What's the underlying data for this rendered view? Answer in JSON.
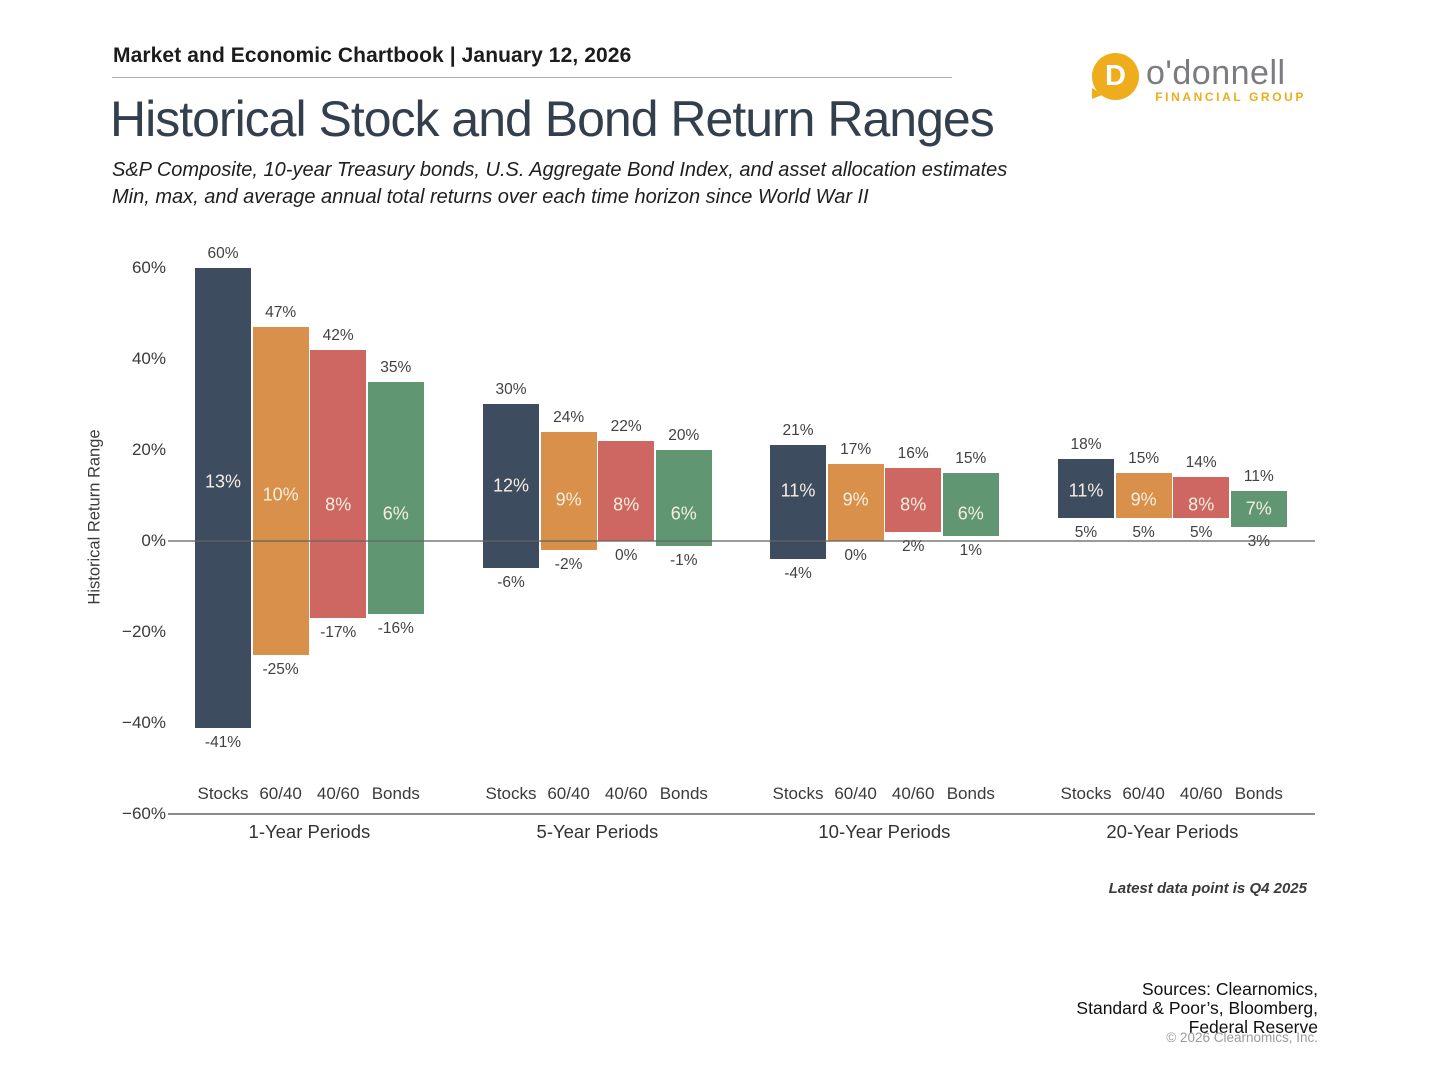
{
  "header": {
    "chartbook_title": "Market and Economic Chartbook | January 12, 2026"
  },
  "logo": {
    "icon_letter": "D",
    "name": "o'donnell",
    "subtitle": "FINANCIAL GROUP",
    "gold": "#EFAC1C",
    "gray": "#7B7C7F"
  },
  "title": "Historical Stock and Bond Return Ranges",
  "subtitle": {
    "line1": "S&P Composite, 10-year Treasury bonds, U.S. Aggregate Bond Index, and asset allocation estimates",
    "line2": "Min, max, and average annual total returns over each time horizon since World War II"
  },
  "footnote": "Latest data point is Q4 2025",
  "sources_lines": [
    "Sources: Clearnomics,",
    "Standard & Poor’s, Bloomberg,",
    "Federal Reserve"
  ],
  "copyright": "© 2026 Clearnomics, Inc.",
  "chart_data": {
    "type": "bar",
    "subtype": "floating min-max range bars with average labels",
    "title": "Historical Stock and Bond Return Ranges",
    "ylabel": "Historical Return Range",
    "ylim": [
      -60,
      60
    ],
    "yticks": [
      60,
      40,
      20,
      0,
      -20,
      -40,
      -60
    ],
    "ytick_labels": [
      "60%",
      "40%",
      "20%",
      "0%",
      "−20%",
      "−40%",
      "−60%"
    ],
    "categories": [
      "Stocks",
      "60/40",
      "40/60",
      "Bonds"
    ],
    "series_colors": [
      "#3D4C5F",
      "#D8904A",
      "#CE6761",
      "#609672"
    ],
    "grid": false,
    "legend": "none",
    "groups": [
      {
        "label": "1-Year Periods",
        "bars": [
          {
            "name": "Stocks",
            "max": 60,
            "avg": 13,
            "min": -41
          },
          {
            "name": "60/40",
            "max": 47,
            "avg": 10,
            "min": -25
          },
          {
            "name": "40/60",
            "max": 42,
            "avg": 8,
            "min": -17
          },
          {
            "name": "Bonds",
            "max": 35,
            "avg": 6,
            "min": -16
          }
        ]
      },
      {
        "label": "5-Year Periods",
        "bars": [
          {
            "name": "Stocks",
            "max": 30,
            "avg": 12,
            "min": -6
          },
          {
            "name": "60/40",
            "max": 24,
            "avg": 9,
            "min": -2
          },
          {
            "name": "40/60",
            "max": 22,
            "avg": 8,
            "min": 0
          },
          {
            "name": "Bonds",
            "max": 20,
            "avg": 6,
            "min": -1
          }
        ]
      },
      {
        "label": "10-Year Periods",
        "bars": [
          {
            "name": "Stocks",
            "max": 21,
            "avg": 11,
            "min": -4
          },
          {
            "name": "60/40",
            "max": 17,
            "avg": 9,
            "min": 0
          },
          {
            "name": "40/60",
            "max": 16,
            "avg": 8,
            "min": 2
          },
          {
            "name": "Bonds",
            "max": 15,
            "avg": 6,
            "min": 1
          }
        ]
      },
      {
        "label": "20-Year Periods",
        "bars": [
          {
            "name": "Stocks",
            "max": 18,
            "avg": 11,
            "min": 5
          },
          {
            "name": "60/40",
            "max": 15,
            "avg": 9,
            "min": 5
          },
          {
            "name": "40/60",
            "max": 14,
            "avg": 8,
            "min": 5
          },
          {
            "name": "Bonds",
            "max": 11,
            "avg": 7,
            "min": 3
          }
        ]
      }
    ]
  }
}
